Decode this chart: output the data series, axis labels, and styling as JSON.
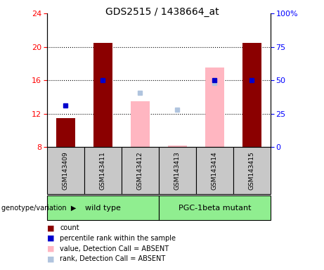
{
  "title": "GDS2515 / 1438664_at",
  "samples": [
    "GSM143409",
    "GSM143411",
    "GSM143412",
    "GSM143413",
    "GSM143414",
    "GSM143415"
  ],
  "count_values": [
    11.5,
    20.5,
    null,
    null,
    null,
    20.5
  ],
  "count_color": "#8B0000",
  "percentile_values": [
    13.0,
    16.0,
    null,
    null,
    16.0,
    16.0
  ],
  "percentile_color": "#0000CD",
  "absent_value_values": [
    null,
    null,
    13.5,
    8.2,
    17.5,
    null
  ],
  "absent_value_color": "#FFB6C1",
  "absent_rank_values": [
    null,
    null,
    14.5,
    12.5,
    15.7,
    null
  ],
  "absent_rank_color": "#B0C4DE",
  "ylim_left": [
    8,
    24
  ],
  "yticks_left": [
    8,
    12,
    16,
    20,
    24
  ],
  "ylim_right": [
    0,
    100
  ],
  "yticks_right": [
    0,
    25,
    50,
    75,
    100
  ],
  "ytick_labels_right": [
    "0",
    "25",
    "50",
    "75",
    "100%"
  ],
  "bar_width": 0.5,
  "marker_size": 5,
  "legend_items": [
    {
      "label": "count",
      "color": "#8B0000"
    },
    {
      "label": "percentile rank within the sample",
      "color": "#0000CD"
    },
    {
      "label": "value, Detection Call = ABSENT",
      "color": "#FFB6C1"
    },
    {
      "label": "rank, Detection Call = ABSENT",
      "color": "#B0C4DE"
    }
  ],
  "background_color": "#ffffff",
  "plot_bg_color": "#ffffff",
  "genotype_label": "genotype/variation",
  "group_bg_color": "#c8c8c8",
  "group_label_bg": "#90EE90",
  "groups": [
    {
      "label": "wild type",
      "start": 0,
      "end": 3
    },
    {
      "label": "PGC-1beta mutant",
      "start": 3,
      "end": 6
    }
  ]
}
